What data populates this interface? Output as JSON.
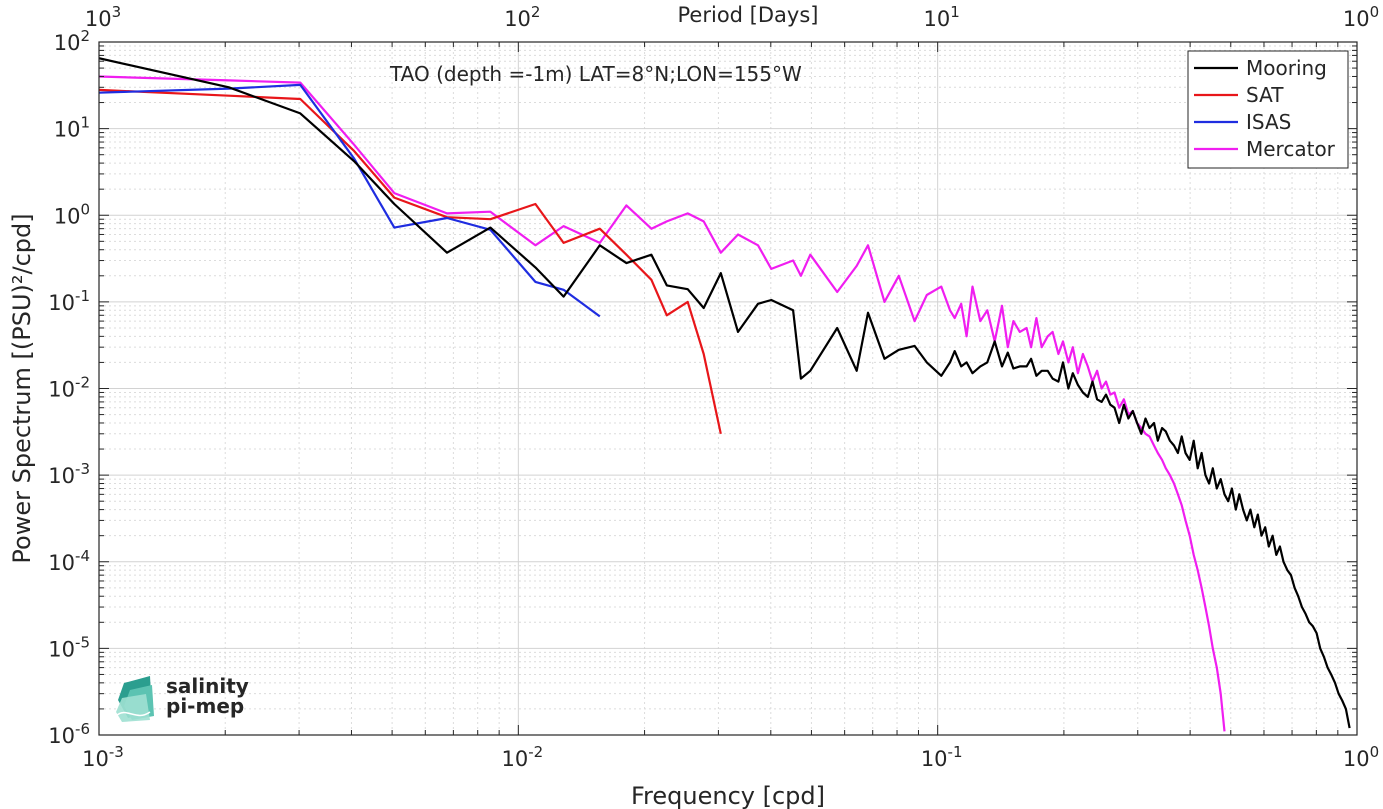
{
  "chart_data": {
    "type": "line",
    "title": "",
    "annotation": "TAO (depth =-1m) LAT=8°N;LON=155°W",
    "xlabel": "Frequency [cpd]",
    "ylabel": "Power Spectrum [(PSU)²/cpd]",
    "top_xlabel": "Period [Days]",
    "xscale": "log",
    "yscale": "log",
    "xlim": [
      0.001,
      1
    ],
    "ylim": [
      1e-06,
      100
    ],
    "grid": true,
    "legend_position": "top-right",
    "x_ticks": [
      {
        "base": "10",
        "exp": "-3"
      },
      {
        "base": "10",
        "exp": "-2"
      },
      {
        "base": "10",
        "exp": "-1"
      },
      {
        "base": "10",
        "exp": "0"
      }
    ],
    "top_x_ticks": [
      {
        "base": "10",
        "exp": "3"
      },
      {
        "base": "10",
        "exp": "2"
      },
      {
        "base": "10",
        "exp": "1"
      },
      {
        "base": "10",
        "exp": "0"
      }
    ],
    "y_ticks": [
      {
        "base": "10",
        "exp": "2"
      },
      {
        "base": "10",
        "exp": "1"
      },
      {
        "base": "10",
        "exp": "0"
      },
      {
        "base": "10",
        "exp": "-1"
      },
      {
        "base": "10",
        "exp": "-2"
      },
      {
        "base": "10",
        "exp": "-3"
      },
      {
        "base": "10",
        "exp": "-4"
      },
      {
        "base": "10",
        "exp": "-5"
      },
      {
        "base": "10",
        "exp": "-6"
      }
    ],
    "series": [
      {
        "name": "Mooring",
        "color": "#000000",
        "x": [
          0.001,
          0.00204,
          0.00302,
          0.00406,
          0.00506,
          0.00676,
          0.00858,
          0.01098,
          0.01282,
          0.01564,
          0.0181,
          0.02076,
          0.0226,
          0.02534,
          0.02768,
          0.0304,
          0.0334,
          0.03728,
          0.0401,
          0.0452,
          0.0472,
          0.0497,
          0.0576,
          0.0641,
          0.0682,
          0.0747,
          0.0808,
          0.0881,
          0.0942,
          0.102,
          0.107,
          0.1098,
          0.1138,
          0.1172,
          0.1211,
          0.1264,
          0.1313,
          0.1368,
          0.1424,
          0.147,
          0.1516,
          0.157,
          0.163,
          0.167,
          0.172,
          0.177,
          0.183,
          0.188,
          0.194,
          0.199,
          0.205,
          0.21,
          0.216,
          0.222,
          0.228,
          0.234,
          0.24,
          0.246,
          0.252,
          0.258,
          0.264,
          0.271,
          0.278,
          0.285,
          0.292,
          0.299,
          0.306,
          0.313,
          0.32,
          0.328,
          0.335,
          0.343,
          0.35,
          0.358,
          0.366,
          0.374,
          0.382,
          0.39,
          0.399,
          0.408,
          0.417,
          0.426,
          0.435,
          0.444,
          0.453,
          0.463,
          0.473,
          0.483,
          0.493,
          0.503,
          0.514,
          0.524,
          0.535,
          0.546,
          0.557,
          0.569,
          0.58,
          0.592,
          0.604,
          0.616,
          0.629,
          0.642,
          0.655,
          0.668,
          0.682,
          0.696,
          0.71,
          0.724,
          0.739,
          0.754,
          0.769,
          0.785,
          0.801,
          0.817,
          0.834,
          0.851,
          0.868,
          0.886,
          0.904,
          0.922,
          0.941,
          0.96
        ],
        "y": [
          65,
          30,
          15,
          4.2,
          1.35,
          0.37,
          0.72,
          0.25,
          0.115,
          0.45,
          0.28,
          0.35,
          0.155,
          0.14,
          0.085,
          0.215,
          0.045,
          0.095,
          0.105,
          0.08,
          0.013,
          0.016,
          0.05,
          0.016,
          0.075,
          0.022,
          0.028,
          0.031,
          0.02,
          0.014,
          0.02,
          0.027,
          0.018,
          0.02,
          0.015,
          0.018,
          0.02,
          0.035,
          0.018,
          0.026,
          0.017,
          0.018,
          0.018,
          0.022,
          0.014,
          0.016,
          0.016,
          0.013,
          0.012,
          0.02,
          0.01,
          0.015,
          0.011,
          0.009,
          0.008,
          0.012,
          0.0075,
          0.007,
          0.0085,
          0.0065,
          0.006,
          0.004,
          0.0065,
          0.0045,
          0.0055,
          0.004,
          0.003,
          0.0045,
          0.0035,
          0.004,
          0.0025,
          0.0035,
          0.0032,
          0.0025,
          0.0022,
          0.0018,
          0.0028,
          0.0018,
          0.0015,
          0.0025,
          0.0012,
          0.0018,
          0.001,
          0.0008,
          0.0012,
          0.0007,
          0.0009,
          0.0006,
          0.0005,
          0.0007,
          0.0004,
          0.0006,
          0.0004,
          0.0003,
          0.0004,
          0.00025,
          0.00035,
          0.0002,
          0.00025,
          0.00015,
          0.0002,
          0.00012,
          0.00015,
          0.0001,
          8e-05,
          7e-05,
          5e-05,
          4e-05,
          3e-05,
          2.5e-05,
          2e-05,
          1.8e-05,
          1.5e-05,
          1e-05,
          8e-06,
          6e-06,
          5e-06,
          4e-06,
          3e-06,
          2.5e-06,
          2e-06,
          1.2e-06
        ]
      },
      {
        "name": "SAT",
        "color": "#e8161a",
        "x": [
          0.001,
          0.00204,
          0.00302,
          0.00406,
          0.00506,
          0.00676,
          0.00858,
          0.01098,
          0.01282,
          0.01564,
          0.0181,
          0.02076,
          0.0226,
          0.02534,
          0.02768,
          0.0304
        ],
        "y": [
          28,
          24,
          22,
          5.5,
          1.6,
          0.95,
          0.9,
          1.35,
          0.48,
          0.7,
          0.35,
          0.18,
          0.07,
          0.1,
          0.025,
          0.003
        ]
      },
      {
        "name": "ISAS",
        "color": "#1f2de0",
        "x": [
          0.001,
          0.00204,
          0.00302,
          0.00406,
          0.00506,
          0.00676,
          0.00858,
          0.01098,
          0.01282,
          0.01564
        ],
        "y": [
          26,
          29,
          32,
          4.5,
          0.72,
          0.93,
          0.68,
          0.17,
          0.138,
          0.068
        ]
      },
      {
        "name": "Mercator",
        "color": "#f01ef0",
        "x": [
          0.001,
          0.00204,
          0.00302,
          0.00406,
          0.00506,
          0.00676,
          0.00858,
          0.01098,
          0.01282,
          0.01564,
          0.0181,
          0.02076,
          0.0226,
          0.02534,
          0.02768,
          0.0304,
          0.0334,
          0.03728,
          0.0401,
          0.0452,
          0.0472,
          0.0497,
          0.0576,
          0.0641,
          0.0682,
          0.0747,
          0.0808,
          0.0881,
          0.0942,
          0.102,
          0.107,
          0.1098,
          0.1138,
          0.1172,
          0.1211,
          0.1264,
          0.1313,
          0.1368,
          0.1424,
          0.147,
          0.1516,
          0.157,
          0.163,
          0.167,
          0.172,
          0.177,
          0.183,
          0.188,
          0.194,
          0.199,
          0.205,
          0.21,
          0.216,
          0.222,
          0.228,
          0.234,
          0.24,
          0.246,
          0.252,
          0.258,
          0.264,
          0.271,
          0.278,
          0.285,
          0.292,
          0.299,
          0.306,
          0.313,
          0.32,
          0.328,
          0.335,
          0.343,
          0.35,
          0.358,
          0.366,
          0.374,
          0.382,
          0.39,
          0.399,
          0.408,
          0.417,
          0.426,
          0.435,
          0.444,
          0.453,
          0.463,
          0.473,
          0.483
        ],
        "y": [
          40,
          36,
          34,
          6.5,
          1.8,
          1.05,
          1.1,
          0.45,
          0.75,
          0.48,
          1.3,
          0.7,
          0.85,
          1.05,
          0.85,
          0.37,
          0.6,
          0.45,
          0.24,
          0.3,
          0.2,
          0.35,
          0.13,
          0.26,
          0.45,
          0.1,
          0.2,
          0.06,
          0.12,
          0.15,
          0.08,
          0.065,
          0.095,
          0.04,
          0.15,
          0.06,
          0.08,
          0.035,
          0.09,
          0.03,
          0.06,
          0.045,
          0.05,
          0.03,
          0.065,
          0.03,
          0.04,
          0.045,
          0.025,
          0.035,
          0.02,
          0.03,
          0.015,
          0.025,
          0.018,
          0.012,
          0.016,
          0.01,
          0.012,
          0.0085,
          0.009,
          0.006,
          0.0075,
          0.005,
          0.0055,
          0.004,
          0.0035,
          0.003,
          0.0028,
          0.0022,
          0.0018,
          0.0015,
          0.0012,
          0.001,
          0.0008,
          0.0006,
          0.00045,
          0.0003,
          0.0002,
          0.00012,
          8e-05,
          5e-05,
          3e-05,
          1.8e-05,
          1e-05,
          6e-06,
          3e-06,
          1.1e-06
        ]
      }
    ]
  },
  "logo": {
    "line1": "salinity",
    "line2": "pi-mep"
  }
}
